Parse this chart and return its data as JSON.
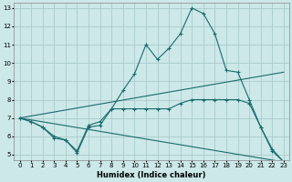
{
  "xlabel": "Humidex (Indice chaleur)",
  "bg_color": "#cce8e8",
  "grid_color": "#aacccc",
  "line_color": "#1a6b6b",
  "xlim": [
    -0.5,
    23.5
  ],
  "ylim": [
    4.7,
    13.3
  ],
  "yticks": [
    5,
    6,
    7,
    8,
    9,
    10,
    11,
    12,
    13
  ],
  "xticks": [
    0,
    1,
    2,
    3,
    4,
    5,
    6,
    7,
    8,
    9,
    10,
    11,
    12,
    13,
    14,
    15,
    16,
    17,
    18,
    19,
    20,
    21,
    22,
    23
  ],
  "lines": [
    {
      "x": [
        0,
        1,
        2,
        3,
        4,
        5,
        6,
        7,
        8,
        9,
        10,
        11,
        12,
        13,
        14,
        15,
        16,
        17,
        18,
        19,
        20,
        21,
        22,
        23
      ],
      "y": [
        7.0,
        6.8,
        6.5,
        5.9,
        5.8,
        5.1,
        6.5,
        6.6,
        7.5,
        7.5,
        7.5,
        7.5,
        7.5,
        7.5,
        7.8,
        8.0,
        8.0,
        8.0,
        8.0,
        8.0,
        7.8,
        6.5,
        5.2,
        4.6
      ],
      "marker": true
    },
    {
      "x": [
        0,
        1,
        2,
        3,
        4,
        5,
        6,
        7,
        8,
        9,
        10,
        11,
        12,
        13,
        14,
        15,
        16,
        17,
        18,
        19,
        20,
        21,
        22,
        23
      ],
      "y": [
        7.0,
        6.8,
        6.5,
        6.0,
        5.8,
        5.2,
        6.6,
        6.8,
        7.5,
        8.5,
        9.4,
        11.0,
        10.2,
        10.8,
        11.6,
        13.0,
        12.7,
        11.6,
        9.6,
        9.5,
        8.0,
        6.5,
        5.3,
        4.6
      ],
      "marker": true
    },
    {
      "x": [
        0,
        23
      ],
      "y": [
        7.0,
        9.5
      ],
      "marker": false
    },
    {
      "x": [
        0,
        23
      ],
      "y": [
        7.0,
        4.6
      ],
      "marker": false
    }
  ]
}
